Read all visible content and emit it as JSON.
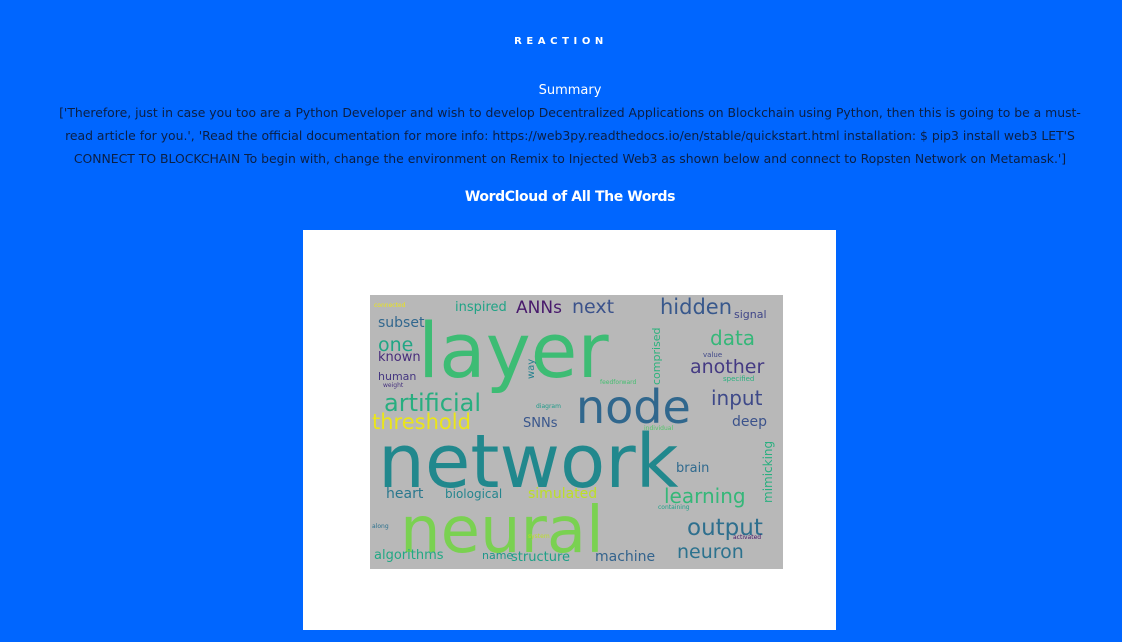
{
  "section": {
    "label": "REACTION"
  },
  "summary": {
    "heading": "Summary",
    "text": "['Therefore, just in case you too are a Python Developer and wish to develop Decentralized Applications on Blockchain using Python, then this is going to be a must-read article for you.', 'Read the official documentation for more info: https://web3py.readthedocs.io/en/stable/quickstart.html installation: $ pip3 install web3 LET'S CONNECT TO BLOCKCHAIN To begin with, change the environment on Remix to Injected Web3 as shown below and connect to Ropsten Network on Metamask.']"
  },
  "wordcloud": {
    "title": "WordCloud of All The Words",
    "words": [
      {
        "text": "layer",
        "color": "#3dbc74"
      },
      {
        "text": "network",
        "color": "#21888d"
      },
      {
        "text": "neural",
        "color": "#7ad151"
      },
      {
        "text": "node",
        "color": "#30678d"
      },
      {
        "text": "artificial",
        "color": "#28ae80"
      },
      {
        "text": "threshold",
        "color": "#eae51a"
      },
      {
        "text": "input",
        "color": "#3e4989"
      },
      {
        "text": "output",
        "color": "#2e6f8e"
      },
      {
        "text": "learning",
        "color": "#35b779"
      },
      {
        "text": "hidden",
        "color": "#38588c"
      },
      {
        "text": "another",
        "color": "#443a83"
      },
      {
        "text": "data",
        "color": "#35b779"
      },
      {
        "text": "ANNs",
        "color": "#481a6c"
      },
      {
        "text": "next",
        "color": "#3b528b"
      },
      {
        "text": "one",
        "color": "#21a685"
      },
      {
        "text": "subset",
        "color": "#31678e"
      },
      {
        "text": "known",
        "color": "#472d7b"
      },
      {
        "text": "human",
        "color": "#453781"
      },
      {
        "text": "deep",
        "color": "#3b528b"
      },
      {
        "text": "neuron",
        "color": "#2c728e"
      },
      {
        "text": "brain",
        "color": "#306a8e"
      },
      {
        "text": "heart",
        "color": "#2a788e"
      },
      {
        "text": "biological",
        "color": "#25858e"
      },
      {
        "text": "simulated",
        "color": "#bddf26"
      },
      {
        "text": "algorithms",
        "color": "#22a884"
      },
      {
        "text": "structure",
        "color": "#1fa088"
      },
      {
        "text": "machine",
        "color": "#33638d"
      },
      {
        "text": "name",
        "color": "#1f968b"
      },
      {
        "text": "SNNs",
        "color": "#39568c"
      },
      {
        "text": "inspired",
        "color": "#20a386"
      },
      {
        "text": "signal",
        "color": "#404688"
      },
      {
        "text": "mimicking",
        "color": "#29af7f"
      },
      {
        "text": "comprised",
        "color": "#2db27d"
      },
      {
        "text": "way",
        "color": "#26818e"
      },
      {
        "text": "value",
        "color": "#3f4788"
      },
      {
        "text": "specified",
        "color": "#2ab07f"
      },
      {
        "text": "feedforward",
        "color": "#44bf70"
      },
      {
        "text": "weight",
        "color": "#46327e"
      },
      {
        "text": "diagram",
        "color": "#1e9b8a"
      },
      {
        "text": "containing",
        "color": "#1fa188"
      },
      {
        "text": "activated",
        "color": "#481668"
      },
      {
        "text": "along",
        "color": "#2c718e"
      },
      {
        "text": "individual",
        "color": "#52c569"
      },
      {
        "text": "connected",
        "color": "#eae51a"
      },
      {
        "text": "system",
        "color": "#bddf26"
      }
    ]
  }
}
